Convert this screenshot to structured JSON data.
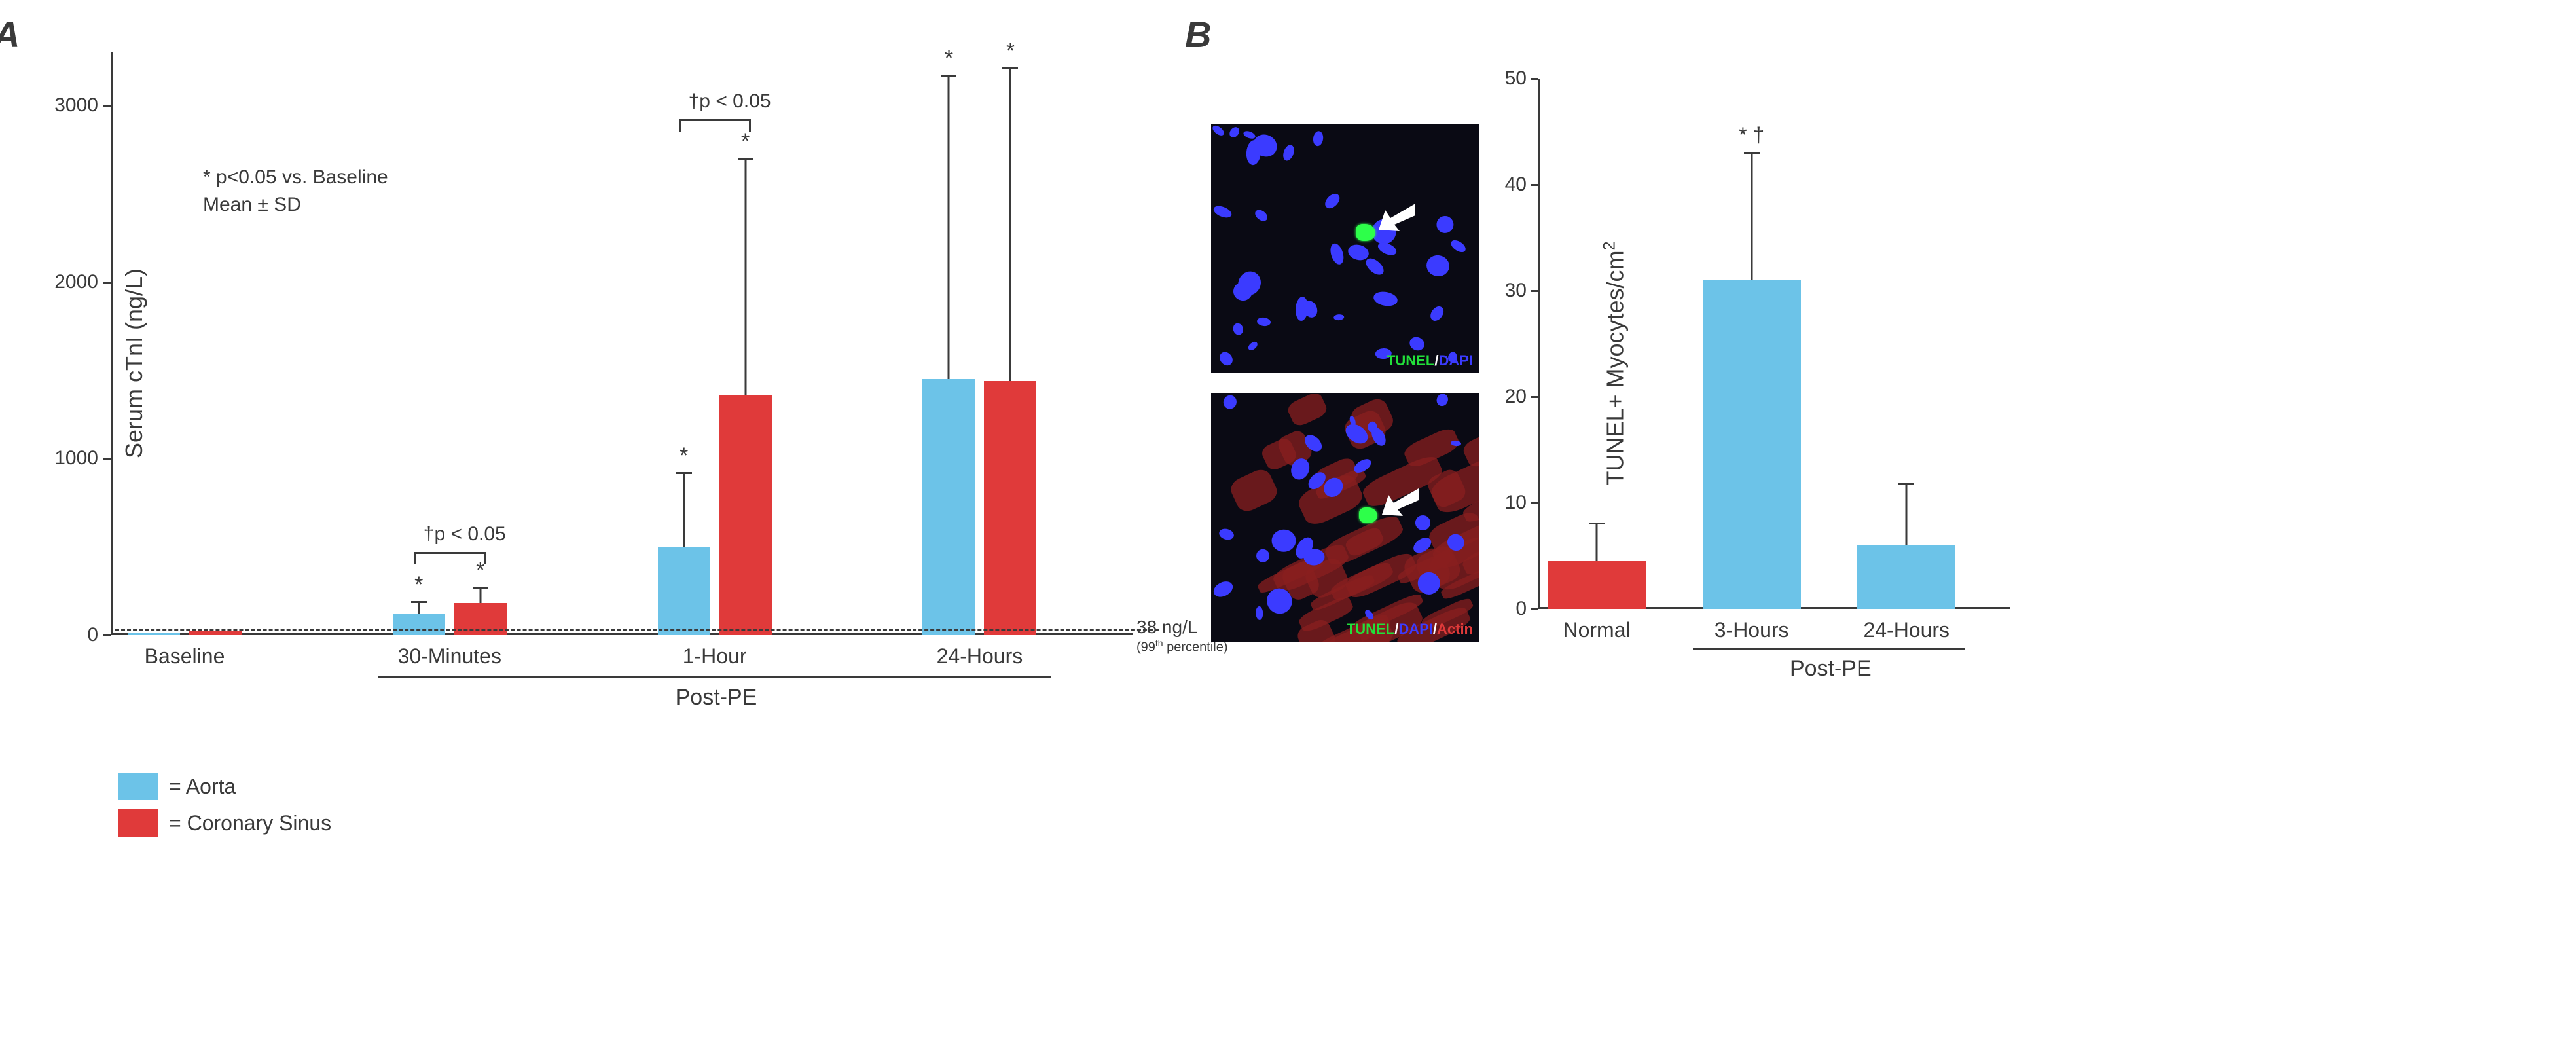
{
  "panelA": {
    "label": "A",
    "ylabel": "Serum cTnI (ng/L)",
    "ylim": [
      0,
      3300
    ],
    "yticks": [
      0,
      1000,
      2000,
      3000
    ],
    "categories": [
      "Baseline",
      "30-Minutes",
      "1-Hour",
      "24-Hours"
    ],
    "group_positions_pct": [
      7,
      33,
      59,
      85
    ],
    "series": [
      {
        "name": "Aorta",
        "color": "#6cc3e8",
        "values": [
          15,
          120,
          500,
          1450
        ],
        "sd": [
          0,
          70,
          420,
          1720
        ],
        "sig": [
          false,
          true,
          true,
          true
        ]
      },
      {
        "name": "Coronary Sinus",
        "color": "#e03a3a",
        "values": [
          25,
          180,
          1360,
          1440
        ],
        "sd": [
          0,
          90,
          1340,
          1770
        ],
        "sig": [
          false,
          true,
          true,
          true
        ]
      }
    ],
    "brackets": [
      {
        "group_idx": 1,
        "label": "†p < 0.05",
        "y_value": 470
      },
      {
        "group_idx": 2,
        "label": "†p < 0.05",
        "y_value": 2920
      }
    ],
    "ref_line": {
      "value": 38,
      "label": "38 ng/L",
      "sub": "(99th percentile)"
    },
    "note": {
      "line1": "* p<0.05 vs. Baseline",
      "line2": "Mean ± SD"
    },
    "postpe_label": "Post-PE",
    "legend_prefix": "= "
  },
  "panelB": {
    "label": "B",
    "ylabel": "TUNEL+ Myocytes/cm²",
    "ylim": [
      0,
      50
    ],
    "yticks": [
      0,
      10,
      20,
      30,
      40,
      50
    ],
    "categories": [
      "Normal",
      "3-Hours",
      "24-Hours"
    ],
    "bar_positions_pct": [
      12,
      45,
      78
    ],
    "colors": [
      "#e03a3a",
      "#6cc3e8",
      "#6cc3e8"
    ],
    "values": [
      4.5,
      31,
      6
    ],
    "sd": [
      3.6,
      12,
      5.8
    ],
    "sig_label": "* †",
    "sig_on_idx": 1,
    "postpe_label": "Post-PE",
    "micro_labels": {
      "top": {
        "t": "TUNEL",
        "d": "DAPI"
      },
      "bottom": {
        "t": "TUNEL",
        "d": "DAPI",
        "a": "Actin"
      }
    },
    "micro_colors": {
      "tunel": "#22e03a",
      "dapi": "#3b3bff",
      "actin": "#e03a3a",
      "slash": "#ffffff"
    }
  },
  "axis_color": "#3a3a3a",
  "text_color": "#3a3a3a"
}
